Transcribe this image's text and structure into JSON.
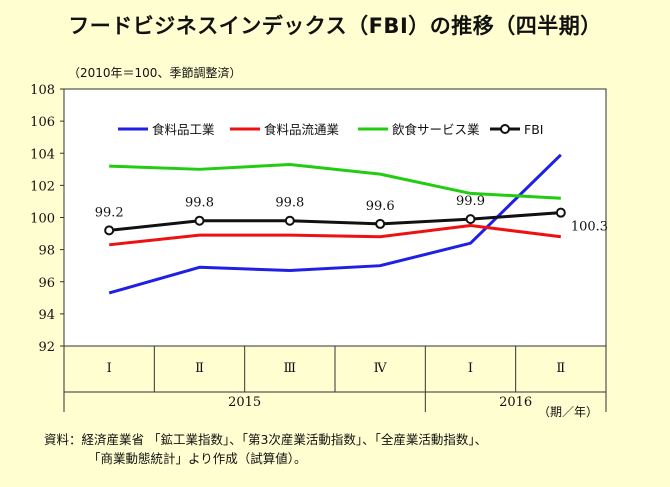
{
  "title": "フードビジネスインデックス（FBI）の推移（四半期）",
  "unit_note": "（2010年＝100、季節調整済）",
  "source_line1": "資料：経済産業省 「鉱工業指数」、「第3次産業活動指数」、「全産業活動指数」、",
  "source_line2": "「商業動態統計」より作成（試算値）。",
  "chart_data": {
    "type": "line",
    "categories": [
      "Ⅰ",
      "Ⅱ",
      "Ⅲ",
      "Ⅳ",
      "Ⅰ",
      "Ⅱ"
    ],
    "years": [
      {
        "label": "2015",
        "from": 0,
        "to": 3
      },
      {
        "label": "2016",
        "from": 4,
        "to": 5
      }
    ],
    "period_label": "（期／年）",
    "ylim": [
      92,
      108
    ],
    "yticks": [
      92,
      94,
      96,
      98,
      100,
      102,
      104,
      106,
      108
    ],
    "series": [
      {
        "name": "食料品工業",
        "color": "#1f1fe6",
        "values": [
          95.3,
          96.9,
          96.7,
          97.0,
          98.4,
          103.9
        ],
        "marker": false
      },
      {
        "name": "食料品流通業",
        "color": "#ee1111",
        "values": [
          98.3,
          98.9,
          98.9,
          98.8,
          99.5,
          98.8
        ],
        "marker": false
      },
      {
        "name": "飲食サービス業",
        "color": "#22cc11",
        "values": [
          103.2,
          103.0,
          103.3,
          102.7,
          101.5,
          101.2
        ],
        "marker": false
      },
      {
        "name": "FBI",
        "color": "#111111",
        "values": [
          99.2,
          99.8,
          99.8,
          99.6,
          99.9,
          100.3
        ],
        "marker": true
      }
    ],
    "data_labels": [
      "99.2",
      "99.8",
      "99.8",
      "99.6",
      "99.9",
      "100.3"
    ]
  }
}
